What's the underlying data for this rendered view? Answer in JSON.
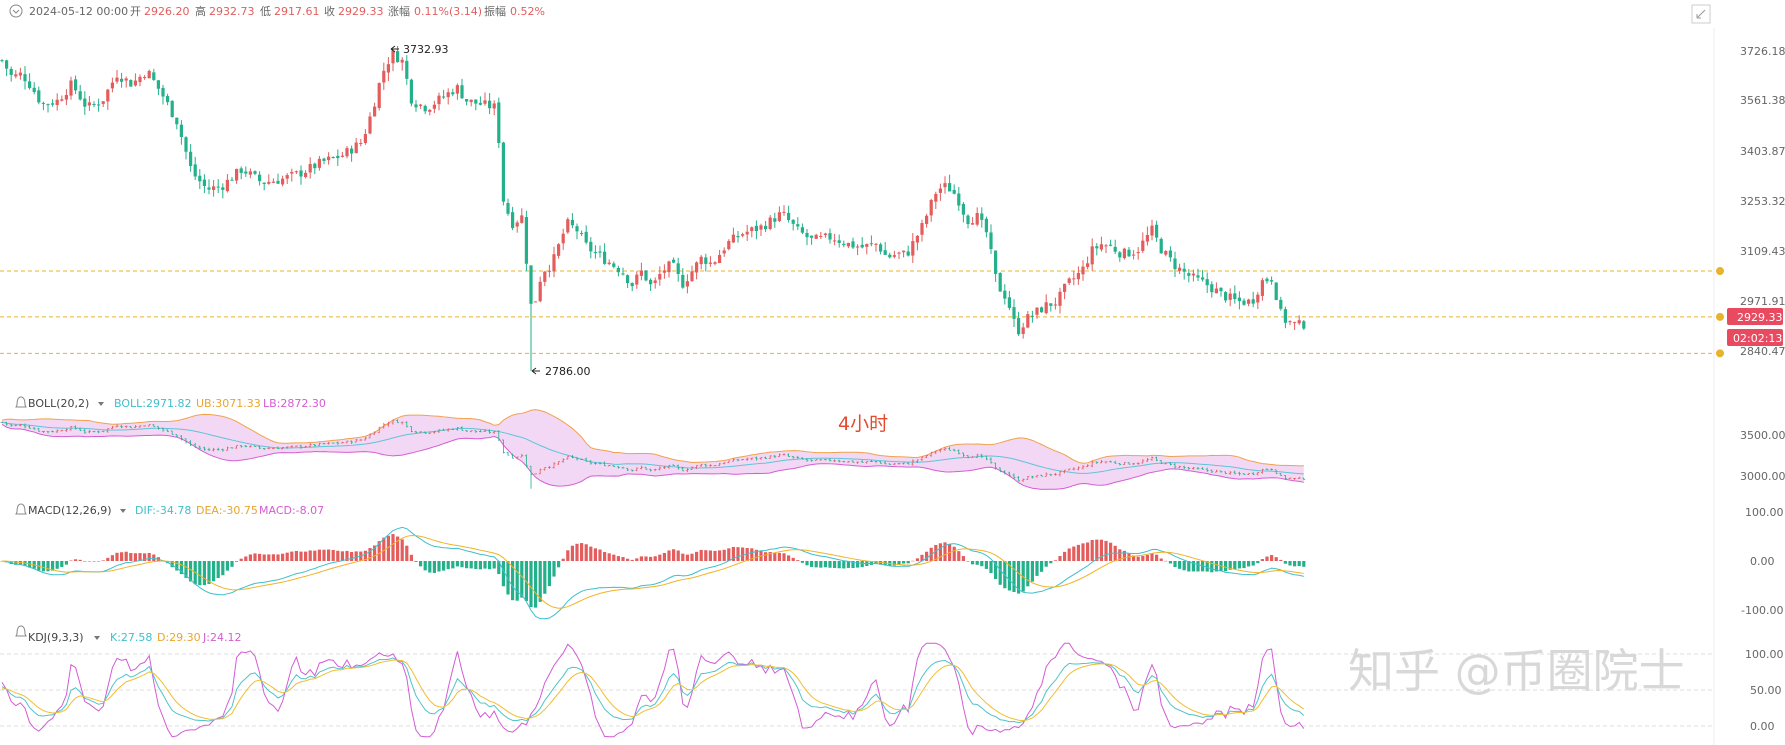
{
  "header": {
    "date": "2024-05-12 00:00",
    "open_label": "开",
    "open": "2926.20",
    "high_label": "高",
    "high": "2932.73",
    "low_label": "低",
    "low": "2917.61",
    "close_label": "收",
    "close": "2929.33",
    "change_label": "涨幅",
    "change": "0.11%(3.14)",
    "amp_label": "振幅",
    "amp": "0.52%"
  },
  "colors": {
    "up": "#e35d5d",
    "down": "#23b08a",
    "boll_mid": "#5ec4d6",
    "boll_ub": "#f0a24b",
    "boll_lb": "#d65cd4",
    "dif": "#3ebfcb",
    "dea": "#f2b227",
    "macd": "#e86b6b",
    "k": "#4fc3c9",
    "d": "#f0bd33",
    "j": "#d35bd6",
    "price_badge": "#e84a5f",
    "hline": "#e8b32a",
    "watermark": "#d5d5d5",
    "label_red": "#e34a2e"
  },
  "main_panel": {
    "y_ticks": [
      "3726.18",
      "3561.38",
      "3403.87",
      "3253.32",
      "3109.43",
      "2971.91",
      "2840.47"
    ],
    "price_badge": "2929.33",
    "timer_badge": "02:02:13",
    "high_annotation": "3732.93",
    "low_annotation": "2786.00",
    "hlines": [
      3080,
      2945,
      2838
    ]
  },
  "overlay_label": "4小时",
  "boll_panel": {
    "title": "BOLL(20,2)",
    "mid_label": "BOLL:2971.82",
    "ub_label": "UB:3071.33",
    "lb_label": "LB:2872.30",
    "y_ticks": [
      "3500.00",
      "3000.00"
    ]
  },
  "macd_panel": {
    "title": "MACD(12,26,9)",
    "dif_label": "DIF:-34.78",
    "dea_label": "DEA:-30.75",
    "macd_label": "MACD:-8.07",
    "y_ticks": [
      "100.00",
      "0.00",
      "-100.00"
    ]
  },
  "kdj_panel": {
    "title": "KDJ(9,3,3)",
    "k_label": "K:27.58",
    "d_label": "D:29.30",
    "j_label": "J:24.12",
    "y_ticks": [
      "100.00",
      "50.00",
      "0.00"
    ]
  },
  "watermark": "知乎 @币圈院士",
  "chart_data": {
    "type": "candlestick",
    "title": "",
    "interval": "4小时",
    "ylim": [
      2786,
      3733
    ],
    "anchors": [
      [
        0,
        3700
      ],
      [
        10,
        3650
      ],
      [
        20,
        3660
      ],
      [
        30,
        3620
      ],
      [
        40,
        3570
      ],
      [
        55,
        3580
      ],
      [
        70,
        3630
      ],
      [
        85,
        3560
      ],
      [
        100,
        3580
      ],
      [
        115,
        3660
      ],
      [
        130,
        3630
      ],
      [
        145,
        3670
      ],
      [
        160,
        3600
      ],
      [
        175,
        3520
      ],
      [
        190,
        3370
      ],
      [
        205,
        3320
      ],
      [
        220,
        3330
      ],
      [
        240,
        3380
      ],
      [
        260,
        3340
      ],
      [
        280,
        3350
      ],
      [
        300,
        3370
      ],
      [
        320,
        3400
      ],
      [
        340,
        3420
      ],
      [
        360,
        3460
      ],
      [
        370,
        3550
      ],
      [
        380,
        3660
      ],
      [
        390,
        3720
      ],
      [
        400,
        3700
      ],
      [
        410,
        3580
      ],
      [
        425,
        3560
      ],
      [
        440,
        3590
      ],
      [
        455,
        3620
      ],
      [
        465,
        3580
      ],
      [
        480,
        3570
      ],
      [
        495,
        3560
      ],
      [
        500,
        3300
      ],
      [
        510,
        3220
      ],
      [
        520,
        3240
      ],
      [
        530,
        2950
      ],
      [
        540,
        3080
      ],
      [
        550,
        3100
      ],
      [
        565,
        3220
      ],
      [
        575,
        3200
      ],
      [
        585,
        3150
      ],
      [
        600,
        3120
      ],
      [
        620,
        3080
      ],
      [
        630,
        3040
      ],
      [
        640,
        3080
      ],
      [
        650,
        3030
      ],
      [
        660,
        3080
      ],
      [
        670,
        3100
      ],
      [
        680,
        3040
      ],
      [
        690,
        3080
      ],
      [
        700,
        3120
      ],
      [
        710,
        3100
      ],
      [
        725,
        3160
      ],
      [
        740,
        3190
      ],
      [
        760,
        3210
      ],
      [
        780,
        3250
      ],
      [
        795,
        3200
      ],
      [
        810,
        3170
      ],
      [
        830,
        3180
      ],
      [
        845,
        3160
      ],
      [
        860,
        3150
      ],
      [
        875,
        3160
      ],
      [
        885,
        3120
      ],
      [
        895,
        3130
      ],
      [
        905,
        3130
      ],
      [
        920,
        3210
      ],
      [
        935,
        3320
      ],
      [
        945,
        3330
      ],
      [
        955,
        3300
      ],
      [
        965,
        3230
      ],
      [
        975,
        3240
      ],
      [
        985,
        3190
      ],
      [
        995,
        3040
      ],
      [
        1005,
        3000
      ],
      [
        1015,
        2900
      ],
      [
        1025,
        2940
      ],
      [
        1035,
        2960
      ],
      [
        1045,
        2980
      ],
      [
        1055,
        2990
      ],
      [
        1065,
        3040
      ],
      [
        1080,
        3080
      ],
      [
        1090,
        3140
      ],
      [
        1100,
        3160
      ],
      [
        1110,
        3150
      ],
      [
        1120,
        3130
      ],
      [
        1135,
        3140
      ],
      [
        1150,
        3200
      ],
      [
        1160,
        3140
      ],
      [
        1175,
        3090
      ],
      [
        1190,
        3060
      ],
      [
        1205,
        3040
      ],
      [
        1220,
        3010
      ],
      [
        1235,
        2990
      ],
      [
        1250,
        2990
      ],
      [
        1260,
        3050
      ],
      [
        1270,
        3060
      ],
      [
        1280,
        2940
      ],
      [
        1295,
        2920
      ],
      [
        1310,
        2929
      ]
    ],
    "high": {
      "value": 3732.93,
      "x_index": 390
    },
    "low": {
      "value": 2786.0,
      "x_index": 530
    },
    "last": 2929.33
  }
}
